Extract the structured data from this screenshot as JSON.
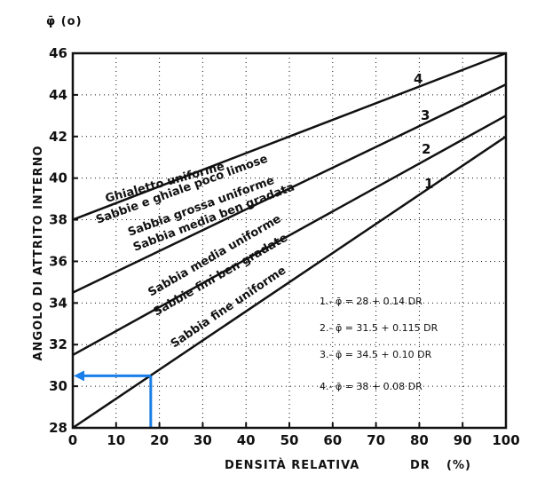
{
  "chart_data": {
    "type": "line",
    "ylabel": "ANGOLO DI ATTRITO INTERNO",
    "ylabel_top": "φ̄ (o)",
    "xlabel": "DENSITÀ RELATIVA",
    "xlabel_symbol": "DR",
    "xlabel_unit": "(%)",
    "xlim": [
      0,
      100
    ],
    "ylim": [
      28,
      46
    ],
    "x_ticks": [
      0,
      10,
      20,
      30,
      40,
      50,
      60,
      70,
      80,
      90,
      100
    ],
    "y_ticks": [
      28,
      30,
      32,
      34,
      36,
      38,
      40,
      42,
      44,
      46
    ],
    "series": [
      {
        "name": "1",
        "x": [
          0,
          100
        ],
        "y": [
          28,
          42
        ],
        "labels": [
          "Sabbia fine uniforme"
        ]
      },
      {
        "name": "2",
        "x": [
          0,
          100
        ],
        "y": [
          31.5,
          43
        ],
        "labels": [
          "Sabbia media uniforme",
          "Sabbie fini ben gradate"
        ]
      },
      {
        "name": "3",
        "x": [
          0,
          100
        ],
        "y": [
          34.5,
          44.5
        ],
        "labels": [
          "Sabbia grossa uniforme",
          "Sabbia media ben gradata"
        ]
      },
      {
        "name": "4",
        "x": [
          0,
          100
        ],
        "y": [
          38,
          46
        ],
        "labels": [
          "Ghialetto uniforme",
          "Sabbie e ghiale poco limose"
        ]
      }
    ],
    "equations": [
      "1.- φ̄ = 28 + 0.14 DR",
      "2.- φ̄ = 31.5 + 0.115 DR",
      "3.- φ̄ = 34.5 + 0.10 DR",
      "4.- φ̄ = 38 + 0.08 DR"
    ],
    "annotation": {
      "x": 18,
      "y": 30.5,
      "color": "#1a7ee8"
    },
    "grid": true,
    "grid_color": "#111111"
  }
}
